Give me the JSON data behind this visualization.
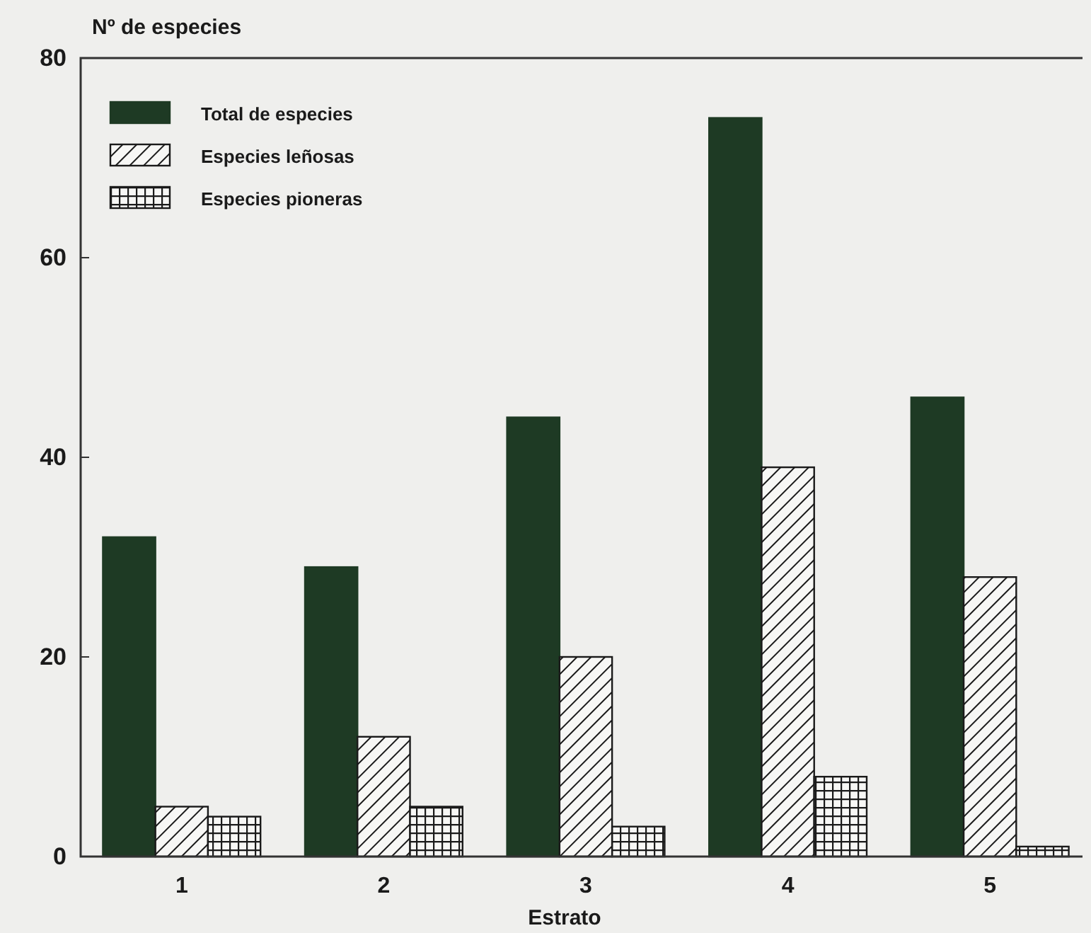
{
  "chart_data": {
    "type": "bar",
    "ylabel": "Nº de especies",
    "xlabel": "Estrato",
    "categories": [
      "1",
      "2",
      "3",
      "4",
      "5"
    ],
    "ylim": [
      0,
      80
    ],
    "yticks": [
      0,
      20,
      40,
      60,
      80
    ],
    "grid": false,
    "legend": "top left",
    "series": [
      {
        "name": "Total de especies",
        "color": "#1e3a24",
        "values": [
          32,
          29,
          44,
          74,
          46
        ]
      },
      {
        "name": "Especies leñosas",
        "color": "#1a1a1a",
        "values": [
          5,
          12,
          20,
          39,
          28
        ]
      },
      {
        "name": "Especies pioneras",
        "color": "#1a1a1a",
        "values": [
          4,
          5,
          3,
          8,
          1
        ]
      }
    ]
  }
}
